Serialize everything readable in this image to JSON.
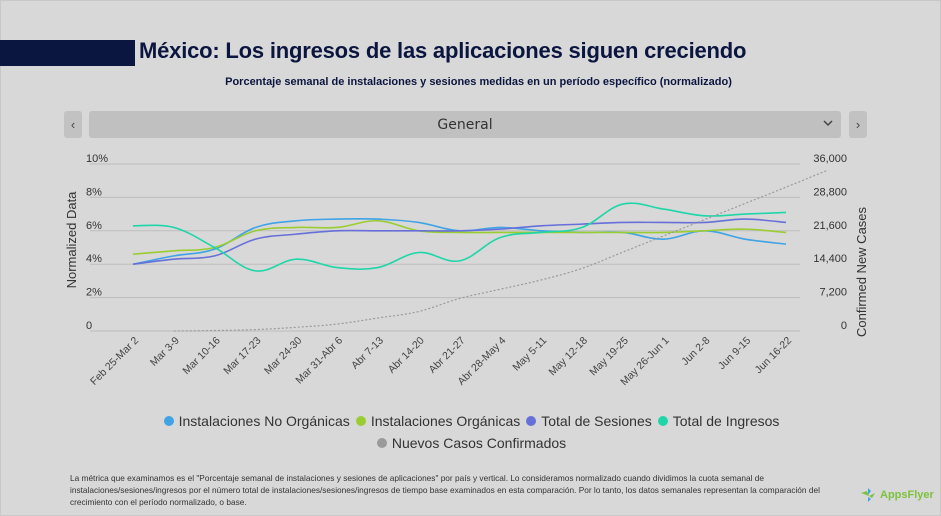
{
  "header": {
    "title": "México: Los ingresos de las aplicaciones siguen creciendo",
    "subtitle": "Porcentaje semanal de instalaciones y sesiones medidas en un período específico (normalizado)"
  },
  "filter": {
    "prev_icon": "‹",
    "next_icon": "›",
    "selected": "General",
    "chevron_icon": "⌄"
  },
  "colors": {
    "title": "#0b1640",
    "no_organicas": "#3fa3e6",
    "organicas": "#9acd32",
    "sesiones": "#6670d8",
    "ingresos": "#1fd6a8",
    "casos": "#9a9a9a",
    "grid": "#bdbdbd"
  },
  "chart_data": {
    "type": "line",
    "title": "Porcentaje semanal de instalaciones y sesiones medidas en un período específico (normalizado)",
    "xlabel": "",
    "ylabel": "Normalized Data",
    "y2label": "Confirmed New Cases",
    "ylim": [
      0,
      10
    ],
    "y2lim": [
      0,
      36000
    ],
    "yticks": [
      "0",
      "2%",
      "4%",
      "6%",
      "8%",
      "10%"
    ],
    "y2ticks": [
      "0",
      "7,200",
      "14,400",
      "21,600",
      "28,800",
      "36,000"
    ],
    "grid": true,
    "legend_position": "bottom",
    "categories": [
      "Feb 25-Mar 2",
      "Mar 3-9",
      "Mar 10-16",
      "Mar 17-23",
      "Mar 24-30",
      "Mar 31-Abr 6",
      "Abr 7-13",
      "Abr 14-20",
      "Abr 21-27",
      "Abr 28-May 4",
      "May 5-11",
      "May 12-18",
      "May 19-25",
      "May 26-Jun 1",
      "Jun 2-8",
      "Jun 9-15",
      "Jun 16-22"
    ],
    "series": [
      {
        "name": "Instalaciones No Orgánicas",
        "axis": "left",
        "color_key": "no_organicas",
        "values": [
          4.0,
          4.5,
          4.9,
          6.2,
          6.6,
          6.7,
          6.7,
          6.5,
          6.0,
          6.2,
          6.0,
          5.9,
          5.9,
          5.5,
          6.0,
          5.5,
          5.2
        ]
      },
      {
        "name": "Instalaciones Orgánicas",
        "axis": "left",
        "color_key": "organicas",
        "values": [
          4.6,
          4.8,
          5.0,
          6.0,
          6.2,
          6.2,
          6.6,
          6.0,
          5.9,
          5.9,
          5.9,
          5.9,
          5.9,
          5.9,
          6.0,
          6.1,
          5.9
        ]
      },
      {
        "name": "Total de Sesiones",
        "axis": "left",
        "color_key": "sesiones",
        "values": [
          4.0,
          4.3,
          4.5,
          5.5,
          5.8,
          6.0,
          6.0,
          6.0,
          6.0,
          6.1,
          6.3,
          6.4,
          6.5,
          6.5,
          6.5,
          6.7,
          6.5
        ]
      },
      {
        "name": "Total de Ingresos",
        "axis": "left",
        "color_key": "ingresos",
        "values": [
          6.3,
          6.2,
          5.0,
          3.6,
          4.3,
          3.8,
          3.8,
          4.7,
          4.2,
          5.6,
          5.9,
          6.2,
          7.6,
          7.3,
          6.9,
          7.0,
          7.1
        ]
      },
      {
        "name": "Nuevos Casos Confirmados",
        "axis": "right",
        "color_key": "casos",
        "values": [
          0,
          100,
          300,
          800,
          1500,
          2800,
          4200,
          7000,
          9000,
          11000,
          13500,
          17000,
          20500,
          24000,
          27500,
          31000,
          34600
        ]
      }
    ]
  },
  "legend": {
    "items": [
      {
        "label": "Instalaciones No Orgánicas",
        "color": "#3fa3e6"
      },
      {
        "label": "Instalaciones Orgánicas",
        "color": "#9acd32"
      },
      {
        "label": "Total de Sesiones",
        "color": "#6670d8"
      },
      {
        "label": "Total de Ingresos",
        "color": "#1fd6a8"
      },
      {
        "label": "Nuevos Casos Confirmados",
        "color": "#9a9a9a"
      }
    ]
  },
  "footnote": "La métrica que examinamos es el \"Porcentaje semanal de instalaciones y sesiones de aplicaciones\" por país y vertical. Lo consideramos normalizado cuando dividimos la cuota semanal de instalaciones/sesiones/ingresos por el número total de instalaciones/sesiones/ingresos de tiempo base examinados en esta comparación. Por lo tanto, los datos semanales representan la comparación del crecimiento con el período normalizado, o base.",
  "logo": {
    "text": "AppsFlyer"
  }
}
